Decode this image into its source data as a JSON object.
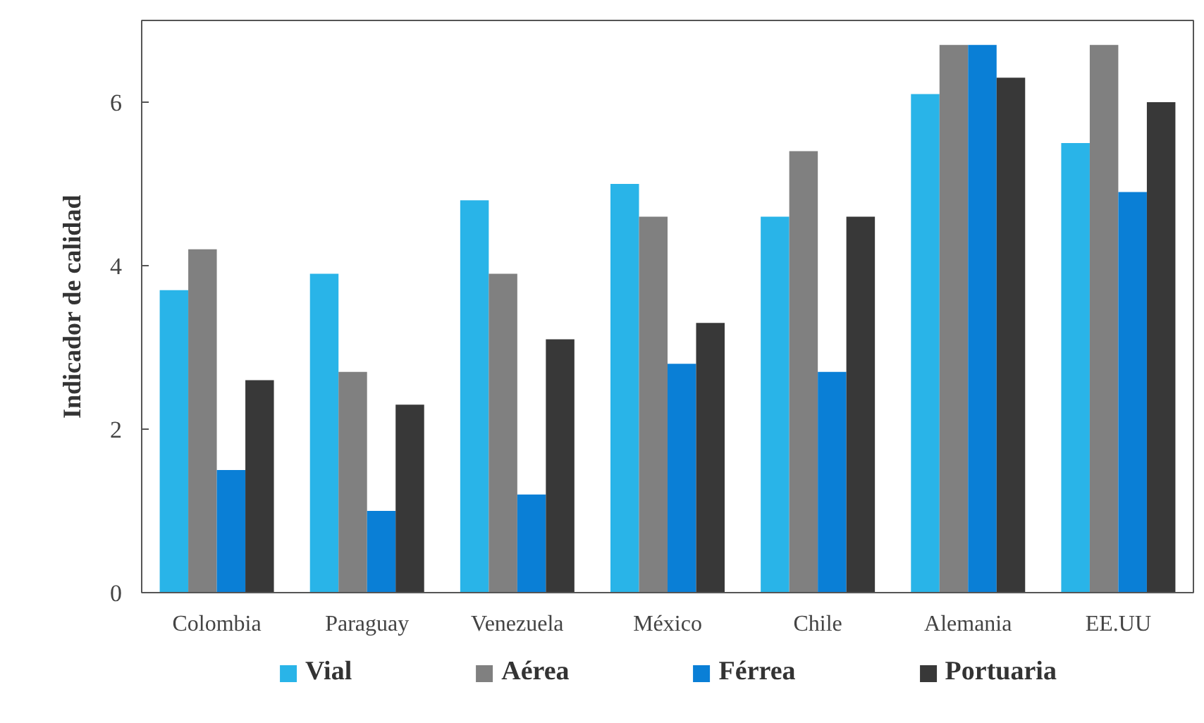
{
  "chart_data": {
    "type": "bar",
    "ylabel": "Indicador de calidad",
    "categories": [
      "Colombia",
      "Paraguay",
      "Venezuela",
      "México",
      "Chile",
      "Alemania",
      "EE.UU"
    ],
    "series": [
      {
        "name": "Vial",
        "color": "#29b4e8",
        "values": [
          3.7,
          3.9,
          4.8,
          5.0,
          4.6,
          6.1,
          5.5
        ]
      },
      {
        "name": "Aérea",
        "color": "#808080",
        "values": [
          4.2,
          2.7,
          3.9,
          4.6,
          5.4,
          6.7,
          6.7
        ]
      },
      {
        "name": "Férrea",
        "color": "#0a7fd6",
        "values": [
          1.5,
          1.0,
          1.2,
          2.8,
          2.7,
          6.7,
          4.9
        ]
      },
      {
        "name": "Portuaria",
        "color": "#383838",
        "values": [
          2.6,
          2.3,
          3.1,
          3.3,
          4.6,
          6.3,
          6.0
        ]
      }
    ],
    "ylim": [
      0,
      7
    ],
    "yticks": [
      0,
      2,
      4,
      6
    ],
    "grid": false,
    "legend": "bottom"
  }
}
